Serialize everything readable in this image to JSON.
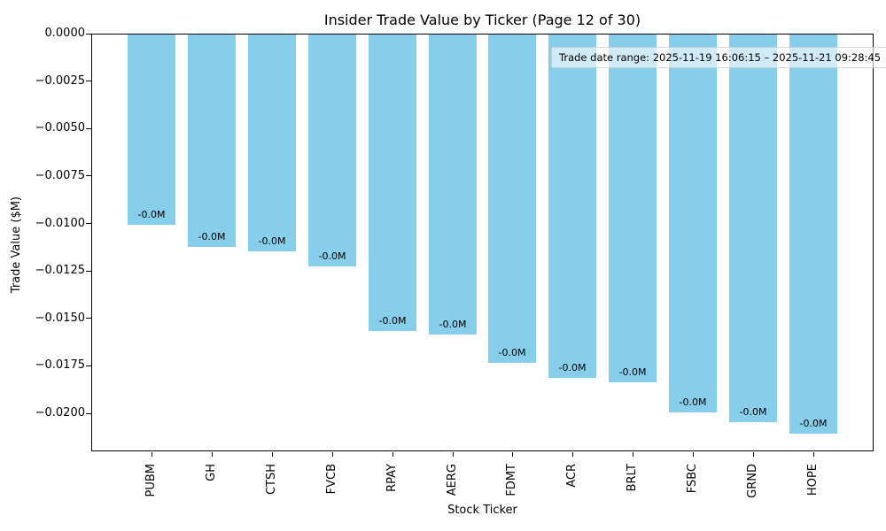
{
  "chart_data": {
    "type": "bar",
    "title": "Insider Trade Value by Ticker (Page 12 of 30)",
    "xlabel": "Stock Ticker",
    "ylabel": "Trade Value ($M)",
    "categories": [
      "PUBM",
      "GH",
      "CTSH",
      "FVCB",
      "RPAY",
      "AERG",
      "FDMT",
      "ACR",
      "BRLT",
      "FSBC",
      "GRND",
      "HOPE"
    ],
    "values": [
      -0.01,
      -0.0112,
      -0.0114,
      -0.0122,
      -0.0156,
      -0.0158,
      -0.0173,
      -0.0181,
      -0.0183,
      -0.0199,
      -0.0204,
      -0.021
    ],
    "bar_labels": [
      "-0.0M",
      "-0.0M",
      "-0.0M",
      "-0.0M",
      "-0.0M",
      "-0.0M",
      "-0.0M",
      "-0.0M",
      "-0.0M",
      "-0.0M",
      "-0.0M",
      "-0.0M"
    ],
    "yticks": [
      0.0,
      -0.0025,
      -0.005,
      -0.0075,
      -0.01,
      -0.0125,
      -0.015,
      -0.0175,
      -0.02
    ],
    "ytick_labels": [
      "0.0000",
      "−0.0025",
      "−0.0050",
      "−0.0075",
      "−0.0100",
      "−0.0125",
      "−0.0150",
      "−0.0175",
      "−0.0200"
    ],
    "ylim": [
      -0.022,
      0
    ],
    "grid": false,
    "legend": null,
    "bar_color": "#87CEEB",
    "background_color": "#ffffff",
    "annotation": "Trade date range: 2025-11-19 16:06:15 – 2025-11-21 09:28:45"
  }
}
